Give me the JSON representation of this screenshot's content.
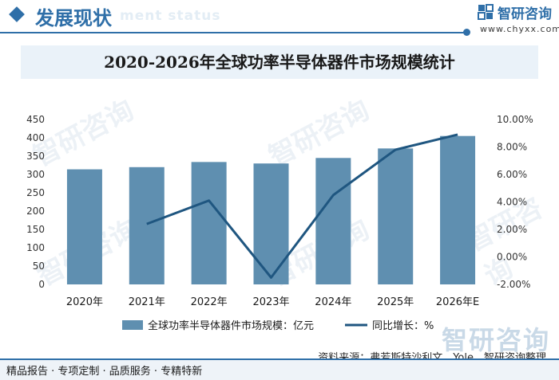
{
  "header": {
    "title": "发展现状",
    "ghost": "ment status",
    "brand": "智研咨询",
    "url": "www.chyxx.com"
  },
  "chart_data": {
    "type": "bar",
    "title": "2020-2026年全球功率半导体器件市场规模统计",
    "categories": [
      "2020年",
      "2021年",
      "2022年",
      "2023年",
      "2024年",
      "2025年",
      "2026年E"
    ],
    "series": [
      {
        "name": "全球功率半导体器件市场规模：亿元",
        "type": "bar",
        "axis": "left",
        "color": "#5f8fb0",
        "values": [
          314,
          320,
          334,
          330,
          345,
          371,
          405
        ]
      },
      {
        "name": "同比增长：%",
        "type": "line",
        "axis": "right",
        "color": "#1f5680",
        "values": [
          null,
          2.4,
          4.1,
          -1.5,
          4.5,
          7.8,
          8.9
        ]
      }
    ],
    "y_left": {
      "min": 0,
      "max": 450,
      "step": 50,
      "ticks": [
        "0",
        "50",
        "100",
        "150",
        "200",
        "250",
        "300",
        "350",
        "400",
        "450"
      ]
    },
    "y_right": {
      "min": -2,
      "max": 10,
      "step": 2,
      "ticks": [
        "-2.00%",
        "0.00%",
        "2.00%",
        "4.00%",
        "6.00%",
        "8.00%",
        "10.00%"
      ]
    },
    "legend_position": "bottom",
    "grid": false
  },
  "watermark": "智研咨询",
  "source": "资料来源：弗若斯特沙利文、Yole、智研咨询整理",
  "footer": "精品报告 · 专项定制 · 品质服务 · 专精特新"
}
